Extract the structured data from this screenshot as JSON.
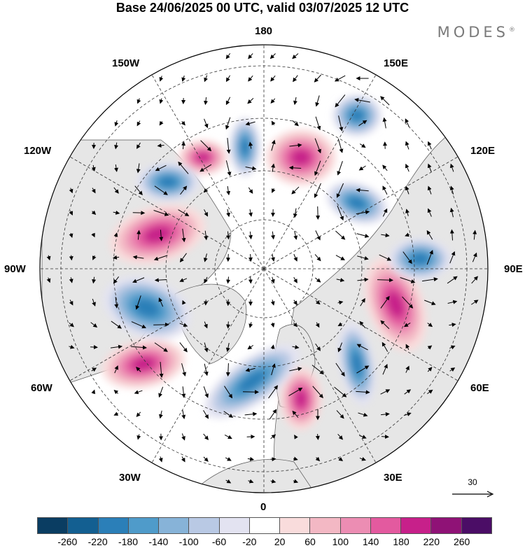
{
  "header": {
    "title": "Base 24/06/2025 00 UTC, valid 03/07/2025 12 UTC",
    "brand": "MODES",
    "brand_mark": "®"
  },
  "map": {
    "projection": "north-polar-stereographic",
    "longitude_labels": {
      "top": "180",
      "top_left": "150W",
      "top_right": "150E",
      "upper_left": "120W",
      "upper_right": "120E",
      "left": "90W",
      "right": "90E",
      "lower_left": "60W",
      "lower_right": "60E",
      "bottom_left": "30W",
      "bottom_right": "30E",
      "bottom": "0"
    },
    "reference_vector_label": "30",
    "land_color": "#e6e6e6",
    "anomaly_centers": [
      {
        "sign": "positive",
        "sector": "150W-120W"
      },
      {
        "sign": "negative",
        "sector": "180"
      },
      {
        "sign": "positive",
        "sector": "165E"
      },
      {
        "sign": "negative",
        "sector": "150E"
      },
      {
        "sign": "positive",
        "sector": "110W"
      },
      {
        "sign": "negative",
        "sector": "130W"
      },
      {
        "sign": "negative",
        "sector": "120E"
      },
      {
        "sign": "negative",
        "sector": "100E"
      },
      {
        "sign": "positive",
        "sector": "80E"
      },
      {
        "sign": "negative",
        "sector": "80W"
      },
      {
        "sign": "positive",
        "sector": "50W"
      },
      {
        "sign": "negative",
        "sector": "30W-0"
      },
      {
        "sign": "positive",
        "sector": "20E"
      },
      {
        "sign": "negative",
        "sector": "45E"
      }
    ]
  },
  "colorbar": {
    "colors": [
      "#0a3d62",
      "#135f91",
      "#2b7fb8",
      "#4f9bca",
      "#87b3d8",
      "#b9c9e4",
      "#e3e3f1",
      "#ffffff",
      "#f9dcdc",
      "#f3b8c4",
      "#ec8db3",
      "#e35a9f",
      "#c7208a",
      "#8f1276",
      "#4b0d66"
    ],
    "ticks": [
      "-260",
      "-220",
      "-180",
      "-140",
      "-100",
      "-60",
      "-20",
      "20",
      "60",
      "100",
      "140",
      "180",
      "220",
      "260"
    ]
  }
}
